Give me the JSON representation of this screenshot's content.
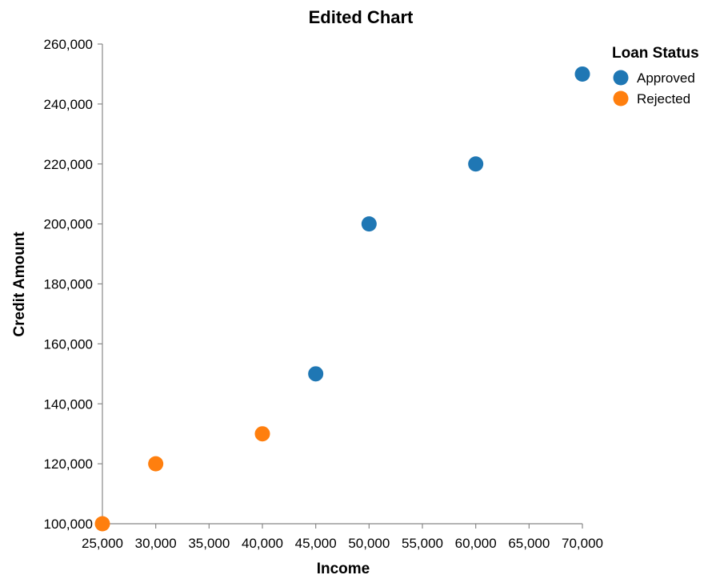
{
  "chart_data": {
    "type": "scatter",
    "title": "Edited Chart",
    "xlabel": "Income",
    "ylabel": "Credit Amount",
    "xlim": [
      25000,
      70000
    ],
    "ylim": [
      100000,
      260000
    ],
    "x_ticks": [
      25000,
      30000,
      35000,
      40000,
      45000,
      50000,
      55000,
      60000,
      65000,
      70000
    ],
    "y_ticks": [
      100000,
      120000,
      140000,
      160000,
      180000,
      200000,
      220000,
      240000,
      260000
    ],
    "x_tick_labels": [
      "25,000",
      "30,000",
      "35,000",
      "40,000",
      "45,000",
      "50,000",
      "55,000",
      "60,000",
      "65,000",
      "70,000"
    ],
    "y_tick_labels": [
      "100,000",
      "120,000",
      "140,000",
      "160,000",
      "180,000",
      "200,000",
      "220,000",
      "240,000",
      "260,000"
    ],
    "grid": false,
    "legend": {
      "title": "Loan Status",
      "placement": "top-right"
    },
    "series": [
      {
        "name": "Approved",
        "color": "#1f77b4",
        "points": [
          {
            "x": 45000,
            "y": 150000
          },
          {
            "x": 50000,
            "y": 200000
          },
          {
            "x": 60000,
            "y": 220000
          },
          {
            "x": 70000,
            "y": 250000
          }
        ]
      },
      {
        "name": "Rejected",
        "color": "#ff7f0e",
        "points": [
          {
            "x": 25000,
            "y": 100000
          },
          {
            "x": 30000,
            "y": 120000
          },
          {
            "x": 40000,
            "y": 130000
          }
        ]
      }
    ]
  }
}
